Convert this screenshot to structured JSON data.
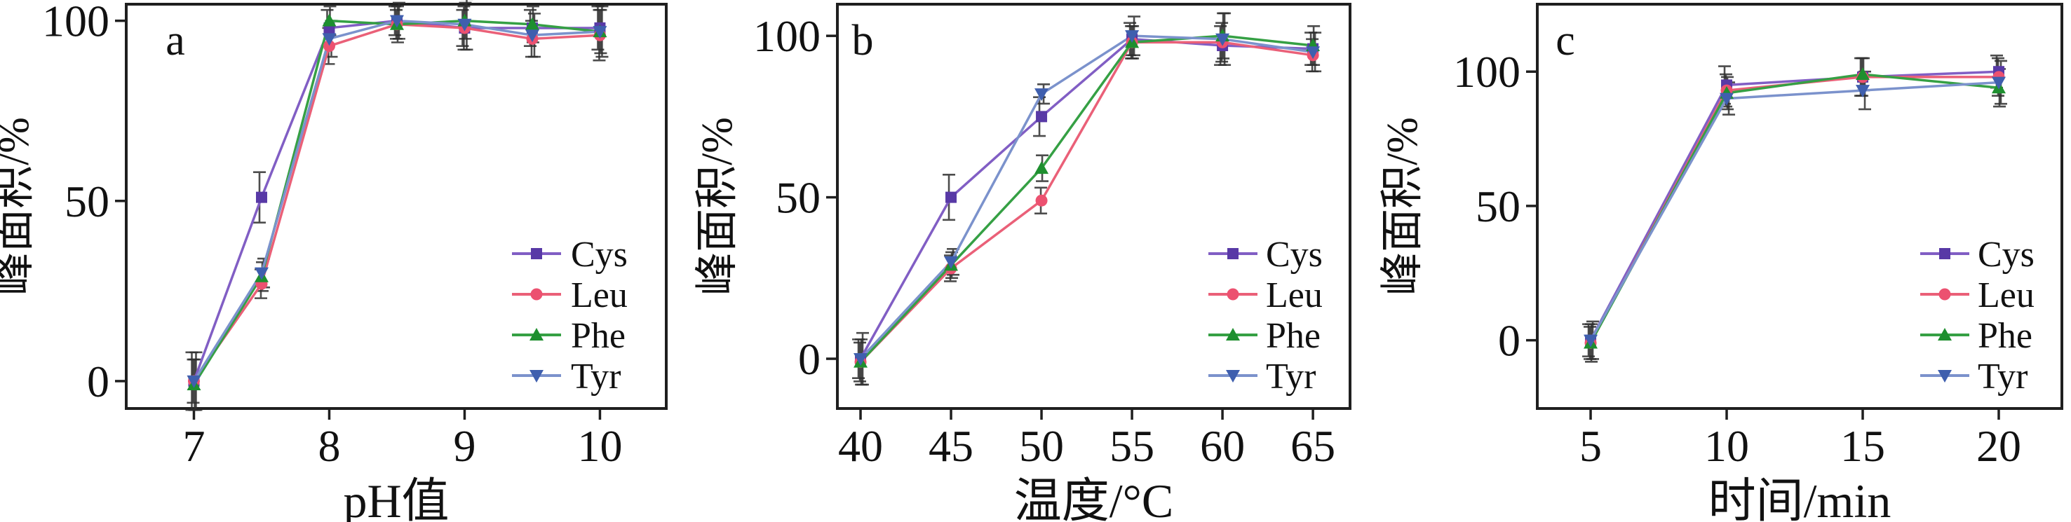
{
  "figure": {
    "background": "#ffffff",
    "frame_color": "#1f1f1f",
    "error_bar_color": "#2e2e2e",
    "tick_color": "#1f1f1f",
    "text_color": "#111111",
    "shared_ylabel": "峰面积/%",
    "series_meta": [
      {
        "name": "Cys",
        "marker": "square",
        "line_color": "#815ec4",
        "marker_color": "#5839a6"
      },
      {
        "name": "Leu",
        "marker": "circle",
        "line_color": "#ea6078",
        "marker_color": "#ec5170"
      },
      {
        "name": "Phe",
        "marker": "triangle-up",
        "line_color": "#35a044",
        "marker_color": "#1e8f2f"
      },
      {
        "name": "Tyr",
        "marker": "triangle-down",
        "line_color": "#7b92cc",
        "marker_color": "#3f5fae"
      }
    ]
  },
  "chart_data": [
    {
      "type": "line",
      "panel_label": "a",
      "xlabel": "pH值",
      "ylabel": "峰面积/%",
      "x": [
        7,
        7.5,
        8,
        8.5,
        9,
        9.5,
        10
      ],
      "xticks": [
        7,
        8,
        9,
        10
      ],
      "xtick_labels": [
        "7",
        "8",
        "9",
        "10"
      ],
      "xlim": [
        6.5,
        10.49
      ],
      "ylim": [
        -7.6,
        104.6
      ],
      "yticks": [
        0,
        50,
        100
      ],
      "grid": false,
      "legend_position": "lower right",
      "legend_entries": [
        "Cys",
        "Leu",
        "Phe",
        "Tyr"
      ],
      "series": [
        {
          "name": "Cys",
          "values": [
            0,
            51,
            98,
            100,
            98,
            98,
            98
          ],
          "errors": [
            8,
            7,
            5,
            4,
            5,
            5,
            6
          ]
        },
        {
          "name": "Leu",
          "values": [
            0,
            27,
            93,
            99,
            98,
            95,
            96
          ],
          "errors": [
            6,
            4,
            5,
            4,
            6,
            5,
            7
          ]
        },
        {
          "name": "Phe",
          "values": [
            -1,
            29,
            100,
            99,
            100,
            99,
            97
          ],
          "errors": [
            7,
            4,
            4,
            5,
            5,
            5,
            6
          ]
        },
        {
          "name": "Tyr",
          "values": [
            0,
            30,
            95,
            100,
            99,
            96,
            97
          ],
          "errors": [
            8,
            4,
            5,
            5,
            7,
            6,
            7
          ]
        }
      ]
    },
    {
      "type": "line",
      "panel_label": "b",
      "xlabel": "温度/°C",
      "ylabel": "峰面积/%",
      "x": [
        40,
        45,
        50,
        55,
        60,
        65
      ],
      "xticks": [
        40,
        45,
        50,
        55,
        60,
        65
      ],
      "xtick_labels": [
        "40",
        "45",
        "50",
        "55",
        "60",
        "65"
      ],
      "xlim": [
        38.72,
        67.05
      ],
      "ylim": [
        -15.4,
        109.8
      ],
      "yticks": [
        0,
        50,
        100
      ],
      "grid": false,
      "legend_position": "lower right",
      "legend_entries": [
        "Cys",
        "Leu",
        "Phe",
        "Tyr"
      ],
      "series": [
        {
          "name": "Cys",
          "values": [
            0,
            50,
            75,
            99,
            97,
            96
          ],
          "errors": [
            6,
            7,
            6,
            5,
            6,
            5
          ]
        },
        {
          "name": "Leu",
          "values": [
            -1,
            28,
            49,
            98,
            98,
            94
          ],
          "errors": [
            6,
            4,
            4,
            5,
            6,
            5
          ]
        },
        {
          "name": "Phe",
          "values": [
            -1,
            29,
            59,
            98,
            100,
            97
          ],
          "errors": [
            7,
            4,
            4,
            5,
            7,
            6
          ]
        },
        {
          "name": "Tyr",
          "values": [
            0,
            30,
            82,
            100,
            99,
            95
          ],
          "errors": [
            8,
            4,
            3,
            6,
            8,
            6
          ]
        }
      ]
    },
    {
      "type": "line",
      "panel_label": "c",
      "xlabel": "时间/min",
      "ylabel": "峰面积/%",
      "x": [
        5,
        10,
        15,
        20
      ],
      "xticks": [
        5,
        10,
        15,
        20
      ],
      "xtick_labels": [
        "5",
        "10",
        "15",
        "20"
      ],
      "xlim": [
        3.04,
        22.32
      ],
      "ylim": [
        -25.4,
        125.1
      ],
      "yticks": [
        0,
        50,
        100
      ],
      "grid": false,
      "legend_position": "lower right",
      "legend_entries": [
        "Cys",
        "Leu",
        "Phe",
        "Tyr"
      ],
      "series": [
        {
          "name": "Cys",
          "values": [
            0,
            95,
            98,
            100
          ],
          "errors": [
            6,
            7,
            7,
            6
          ]
        },
        {
          "name": "Leu",
          "values": [
            -1,
            93,
            98,
            98
          ],
          "errors": [
            6,
            6,
            7,
            7
          ]
        },
        {
          "name": "Phe",
          "values": [
            -1,
            92,
            99,
            94
          ],
          "errors": [
            7,
            6,
            6,
            7
          ]
        },
        {
          "name": "Tyr",
          "values": [
            0,
            90,
            93,
            96
          ],
          "errors": [
            7,
            6,
            7,
            8
          ]
        }
      ]
    }
  ]
}
